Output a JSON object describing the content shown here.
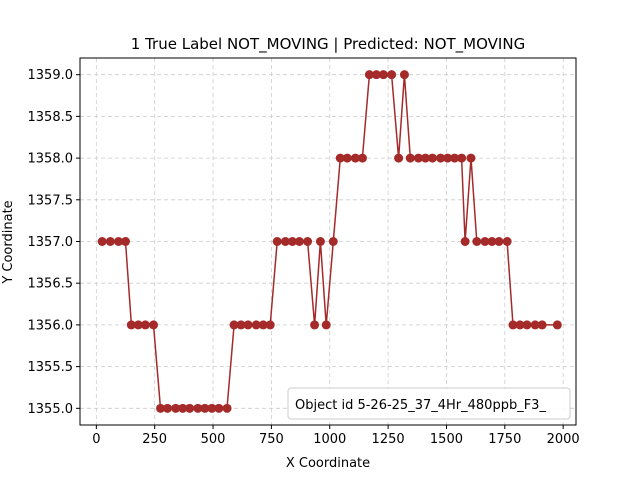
{
  "chart_data": {
    "type": "line",
    "title": "1 True Label NOT_MOVING | Predicted: NOT_MOVING",
    "xlabel": "X Coordinate",
    "ylabel": "Y Coordinate",
    "xlim": [
      -70,
      2055
    ],
    "ylim": [
      1354.8,
      1359.2
    ],
    "x_ticks": [
      0,
      250,
      500,
      750,
      1000,
      1250,
      1500,
      1750,
      2000
    ],
    "y_ticks": [
      1355.0,
      1355.5,
      1356.0,
      1356.5,
      1357.0,
      1357.5,
      1358.0,
      1358.5,
      1359.0
    ],
    "x_tick_labels": [
      "0",
      "250",
      "500",
      "750",
      "1000",
      "1250",
      "1500",
      "1750",
      "2000"
    ],
    "y_tick_labels": [
      "1355.0",
      "1355.5",
      "1356.0",
      "1356.5",
      "1357.0",
      "1357.5",
      "1358.0",
      "1358.5",
      "1359.0"
    ],
    "grid": true,
    "legend_text": "Object id 5-26-25_37_4Hr_480ppb_F3_",
    "legend_position": "lower-right",
    "color": "#a52a2a",
    "series": [
      {
        "points": [
          [
            25,
            1357
          ],
          [
            60,
            1357
          ],
          [
            95,
            1357
          ],
          [
            125,
            1357
          ],
          [
            150,
            1356
          ],
          [
            180,
            1356
          ],
          [
            210,
            1356
          ],
          [
            245,
            1356
          ],
          [
            275,
            1355
          ],
          [
            305,
            1355
          ],
          [
            340,
            1355
          ],
          [
            370,
            1355
          ],
          [
            400,
            1355
          ],
          [
            435,
            1355
          ],
          [
            465,
            1355
          ],
          [
            495,
            1355
          ],
          [
            525,
            1355
          ],
          [
            560,
            1355
          ],
          [
            590,
            1356
          ],
          [
            620,
            1356
          ],
          [
            650,
            1356
          ],
          [
            685,
            1356
          ],
          [
            715,
            1356
          ],
          [
            745,
            1356
          ],
          [
            775,
            1357
          ],
          [
            810,
            1357
          ],
          [
            840,
            1357
          ],
          [
            870,
            1357
          ],
          [
            905,
            1357
          ],
          [
            935,
            1356
          ],
          [
            960,
            1357
          ],
          [
            985,
            1356
          ],
          [
            1015,
            1357
          ],
          [
            1045,
            1358
          ],
          [
            1075,
            1358
          ],
          [
            1110,
            1358
          ],
          [
            1140,
            1358
          ],
          [
            1170,
            1359
          ],
          [
            1200,
            1359
          ],
          [
            1230,
            1359
          ],
          [
            1265,
            1359
          ],
          [
            1295,
            1358
          ],
          [
            1320,
            1359
          ],
          [
            1345,
            1358
          ],
          [
            1380,
            1358
          ],
          [
            1410,
            1358
          ],
          [
            1440,
            1358
          ],
          [
            1475,
            1358
          ],
          [
            1505,
            1358
          ],
          [
            1535,
            1358
          ],
          [
            1565,
            1358
          ],
          [
            1580,
            1357
          ],
          [
            1605,
            1358
          ],
          [
            1630,
            1357
          ],
          [
            1665,
            1357
          ],
          [
            1695,
            1357
          ],
          [
            1725,
            1357
          ],
          [
            1760,
            1357
          ],
          [
            1785,
            1356
          ],
          [
            1815,
            1356
          ],
          [
            1845,
            1356
          ],
          [
            1880,
            1356
          ],
          [
            1910,
            1356
          ],
          [
            1975,
            1356
          ]
        ]
      }
    ]
  }
}
